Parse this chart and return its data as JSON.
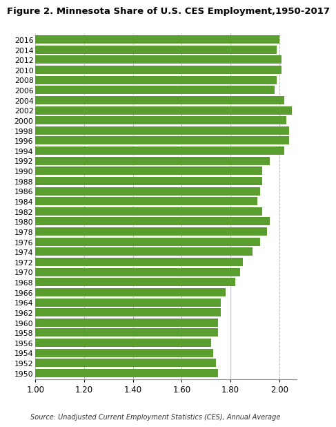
{
  "title": "Figure 2. Minnesota Share of U.S. CES Employment,1950-2017",
  "source": "Source: Unadjusted Current Employment Statistics (CES), Annual Average",
  "bar_color": "#5a9e2f",
  "grid_color": "#bbbbbb",
  "background_color": "#ffffff",
  "xlim": [
    1.0,
    2.07
  ],
  "xticks": [
    1.0,
    1.2,
    1.4,
    1.6,
    1.8,
    2.0
  ],
  "years": [
    2016,
    2014,
    2012,
    2010,
    2008,
    2006,
    2004,
    2002,
    2000,
    1998,
    1996,
    1994,
    1992,
    1990,
    1988,
    1986,
    1984,
    1982,
    1980,
    1978,
    1976,
    1974,
    1972,
    1970,
    1968,
    1966,
    1964,
    1962,
    1960,
    1958,
    1956,
    1954,
    1952,
    1950
  ],
  "values": [
    2.0,
    1.99,
    2.01,
    2.01,
    1.99,
    1.98,
    2.02,
    2.05,
    2.03,
    2.04,
    2.04,
    2.02,
    1.96,
    1.93,
    1.93,
    1.92,
    1.91,
    1.93,
    1.96,
    1.95,
    1.92,
    1.89,
    1.85,
    1.84,
    1.82,
    1.78,
    1.76,
    1.76,
    1.75,
    1.75,
    1.72,
    1.73,
    1.74,
    1.75
  ],
  "ref_line_x": 1.8,
  "title_fontsize": 9.5,
  "source_fontsize": 7,
  "ytick_fontsize": 7.8,
  "xtick_fontsize": 8.5
}
